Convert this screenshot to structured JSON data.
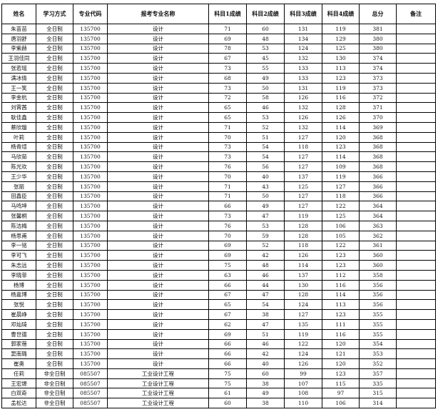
{
  "table": {
    "header": [
      "姓名",
      "学习方式",
      "专业代码",
      "报考专业名称",
      "科目1成绩",
      "科目2成绩",
      "科目3成绩",
      "科目4成绩",
      "总分",
      "备注"
    ],
    "rows": [
      [
        "朱苗苗",
        "全日制",
        "135700",
        "设计",
        "71",
        "60",
        "131",
        "119",
        "381"
      ],
      [
        "唐羽舒",
        "全日制",
        "135700",
        "设计",
        "69",
        "48",
        "134",
        "129",
        "380"
      ],
      [
        "李紫赫",
        "全日制",
        "135700",
        "设计",
        "78",
        "53",
        "124",
        "125",
        "380"
      ],
      [
        "王羽佳同",
        "全日制",
        "135700",
        "设计",
        "67",
        "45",
        "132",
        "130",
        "374"
      ],
      [
        "张若瑶",
        "全日制",
        "135700",
        "设计",
        "73",
        "55",
        "133",
        "113",
        "374"
      ],
      [
        "满冰倩",
        "全日制",
        "135700",
        "设计",
        "68",
        "49",
        "133",
        "123",
        "373"
      ],
      [
        "王一笑",
        "全日制",
        "135700",
        "设计",
        "73",
        "50",
        "131",
        "119",
        "373"
      ],
      [
        "李金杭",
        "全日制",
        "135700",
        "设计",
        "72",
        "58",
        "126",
        "116",
        "372"
      ],
      [
        "刘霄茜",
        "全日制",
        "135700",
        "设计",
        "65",
        "46",
        "132",
        "128",
        "371"
      ],
      [
        "耿佳鑫",
        "全日制",
        "135700",
        "设计",
        "65",
        "53",
        "126",
        "126",
        "370"
      ],
      [
        "蔡欣璇",
        "全日制",
        "135700",
        "设计",
        "71",
        "52",
        "132",
        "114",
        "369"
      ],
      [
        "叶莉",
        "全日制",
        "135700",
        "设计",
        "70",
        "51",
        "127",
        "120",
        "368"
      ],
      [
        "杨青煊",
        "全日制",
        "135700",
        "设计",
        "73",
        "54",
        "118",
        "123",
        "368"
      ],
      [
        "马欣茹",
        "全日制",
        "135700",
        "设计",
        "73",
        "54",
        "127",
        "114",
        "368"
      ],
      [
        "陈光欢",
        "全日制",
        "135700",
        "设计",
        "76",
        "56",
        "127",
        "109",
        "368"
      ],
      [
        "王少华",
        "全日制",
        "135700",
        "设计",
        "70",
        "40",
        "137",
        "119",
        "366"
      ],
      [
        "张丽",
        "全日制",
        "135700",
        "设计",
        "71",
        "43",
        "125",
        "127",
        "366"
      ],
      [
        "田鑫臣",
        "全日制",
        "135700",
        "设计",
        "71",
        "50",
        "127",
        "118",
        "366"
      ],
      [
        "马鸣坤",
        "全日制",
        "135700",
        "设计",
        "66",
        "49",
        "127",
        "122",
        "364"
      ],
      [
        "张馨桐",
        "全日制",
        "135700",
        "设计",
        "73",
        "47",
        "119",
        "125",
        "364"
      ],
      [
        "陈洁梅",
        "全日制",
        "135700",
        "设计",
        "76",
        "53",
        "128",
        "106",
        "363"
      ],
      [
        "杨思甫",
        "全日制",
        "135700",
        "设计",
        "70",
        "59",
        "128",
        "105",
        "362"
      ],
      [
        "李一铭",
        "全日制",
        "135700",
        "设计",
        "69",
        "52",
        "118",
        "122",
        "361"
      ],
      [
        "李可飞",
        "全日制",
        "135700",
        "设计",
        "69",
        "42",
        "126",
        "123",
        "360"
      ],
      [
        "朱志远",
        "全日制",
        "135700",
        "设计",
        "75",
        "48",
        "114",
        "123",
        "360"
      ],
      [
        "李晓菲",
        "全日制",
        "135700",
        "设计",
        "63",
        "46",
        "137",
        "112",
        "358"
      ],
      [
        "杨博",
        "全日制",
        "135700",
        "设计",
        "66",
        "44",
        "130",
        "116",
        "356"
      ],
      [
        "杨嘉博",
        "全日制",
        "135700",
        "设计",
        "67",
        "47",
        "128",
        "114",
        "356"
      ],
      [
        "张悦",
        "全日制",
        "135700",
        "设计",
        "65",
        "54",
        "124",
        "113",
        "356"
      ],
      [
        "崔晨峥",
        "全日制",
        "135700",
        "设计",
        "67",
        "38",
        "127",
        "123",
        "355"
      ],
      [
        "邓灿琦",
        "全日制",
        "135700",
        "设计",
        "62",
        "47",
        "135",
        "111",
        "355"
      ],
      [
        "曹世德",
        "全日制",
        "135700",
        "设计",
        "69",
        "51",
        "119",
        "116",
        "355"
      ],
      [
        "郭家蓓",
        "全日制",
        "135700",
        "设计",
        "66",
        "46",
        "122",
        "120",
        "354"
      ],
      [
        "窦南璐",
        "全日制",
        "135700",
        "设计",
        "66",
        "42",
        "124",
        "121",
        "353"
      ],
      [
        "崔奥",
        "全日制",
        "135700",
        "设计",
        "66",
        "40",
        "126",
        "120",
        "352"
      ],
      [
        "任莉",
        "非全日制",
        "085507",
        "工业设计工程",
        "75",
        "60",
        "99",
        "123",
        "357"
      ],
      [
        "王宏塬",
        "非全日制",
        "085507",
        "工业设计工程",
        "75",
        "38",
        "107",
        "115",
        "335"
      ],
      [
        "白双奇",
        "非全日制",
        "085507",
        "工业设计工程",
        "61",
        "49",
        "108",
        "97",
        "315"
      ],
      [
        "孟松达",
        "非全日制",
        "085507",
        "工业设计工程",
        "60",
        "38",
        "110",
        "106",
        "314"
      ]
    ]
  }
}
